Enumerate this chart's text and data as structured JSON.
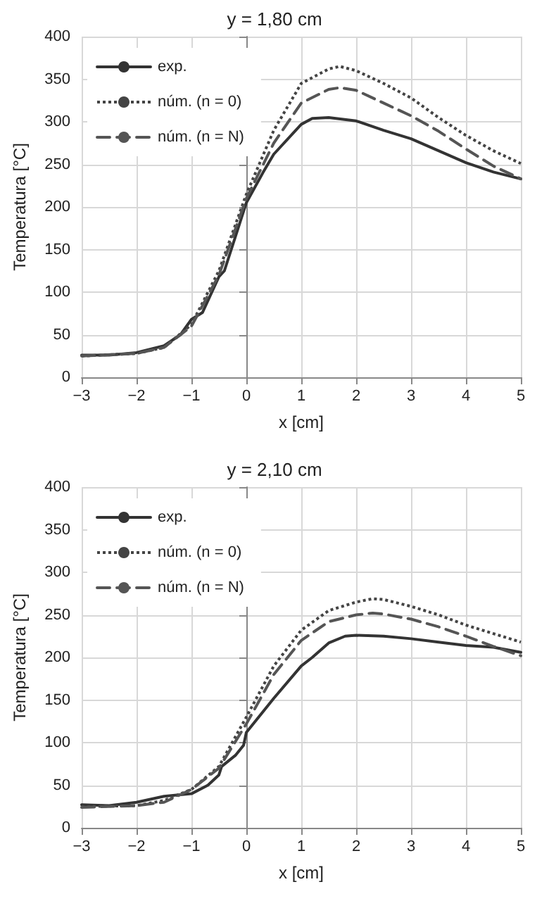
{
  "chart_data": [
    {
      "type": "line",
      "title": "y = 1,80 cm",
      "xlabel": "x [cm]",
      "ylabel": "Temperatura [°C]",
      "xlim": [
        -3,
        5
      ],
      "xticks": [
        {
          "value": -3,
          "label": "−3"
        },
        {
          "value": -2,
          "label": "−2"
        },
        {
          "value": -1,
          "label": "−1"
        },
        0,
        1,
        2,
        3,
        4,
        5
      ],
      "ylim": [
        0,
        400
      ],
      "yticks": [
        0,
        50,
        100,
        150,
        200,
        250,
        300,
        350,
        400
      ],
      "grid": true,
      "legend": "top left",
      "marker": "none",
      "series": [
        {
          "name": "exp.",
          "color": "#333333",
          "line_style": "solid",
          "x": [
            -3,
            -2.5,
            -2,
            -1.5,
            -1.2,
            -1,
            -0.8,
            -0.5,
            -0.4,
            -0.2,
            0,
            0.3,
            0.5,
            1,
            1.2,
            1.5,
            2,
            2.5,
            3,
            3.5,
            4,
            4.5,
            5
          ],
          "values": [
            26,
            26,
            29,
            37,
            50,
            68,
            76,
            118,
            125,
            165,
            205,
            240,
            262,
            297,
            304,
            305,
            301,
            290,
            280,
            266,
            252,
            241,
            233
          ]
        },
        {
          "name": "núm. (n = 0)",
          "color": "#444444",
          "line_style": "dotted",
          "x": [
            -3,
            -2,
            -1.5,
            -1,
            -0.5,
            0,
            0.5,
            1,
            1.5,
            1.7,
            2,
            2.5,
            3,
            3.5,
            4,
            4.5,
            5
          ],
          "values": [
            25,
            28,
            35,
            62,
            125,
            215,
            290,
            345,
            362,
            365,
            360,
            345,
            328,
            305,
            284,
            266,
            251
          ]
        },
        {
          "name": "núm. (n = N)",
          "color": "#555555",
          "line_style": "dashed",
          "x": [
            -3,
            -2,
            -1.5,
            -1,
            -0.5,
            0,
            0.5,
            1,
            1.5,
            1.7,
            2,
            2.5,
            3,
            3.5,
            4,
            4.5,
            5
          ],
          "values": [
            25,
            28,
            35,
            60,
            120,
            210,
            275,
            322,
            338,
            340,
            337,
            322,
            307,
            289,
            268,
            248,
            233
          ]
        }
      ]
    },
    {
      "type": "line",
      "title": "y = 2,10 cm",
      "xlabel": "x [cm]",
      "ylabel": "Temperatura [°C]",
      "xlim": [
        -3,
        5
      ],
      "xticks": [
        {
          "value": -3,
          "label": "−3"
        },
        {
          "value": -2,
          "label": "−2"
        },
        {
          "value": -1,
          "label": "−1"
        },
        0,
        1,
        2,
        3,
        4,
        5
      ],
      "ylim": [
        0,
        400
      ],
      "yticks": [
        0,
        50,
        100,
        150,
        200,
        250,
        300,
        350,
        400
      ],
      "grid": true,
      "legend": "top left",
      "marker": "none",
      "series": [
        {
          "name": "exp.",
          "color": "#333333",
          "line_style": "solid",
          "x": [
            -3,
            -2.5,
            -2,
            -1.5,
            -1,
            -0.7,
            -0.5,
            -0.45,
            -0.2,
            -0.05,
            0,
            0.5,
            1,
            1.2,
            1.5,
            1.8,
            2,
            2.5,
            3,
            3.5,
            4,
            4.5,
            5
          ],
          "values": [
            27,
            26,
            30,
            37,
            40,
            50,
            62,
            72,
            85,
            97,
            112,
            152,
            190,
            200,
            217,
            225,
            226,
            225,
            222,
            218,
            214,
            212,
            206
          ]
        },
        {
          "name": "núm. (n = 0)",
          "color": "#444444",
          "line_style": "dotted",
          "x": [
            -3,
            -2,
            -1.5,
            -1,
            -0.5,
            0,
            0.5,
            1,
            1.5,
            2,
            2.3,
            2.5,
            3,
            3.5,
            4,
            4.5,
            5
          ],
          "values": [
            25,
            26,
            32,
            45,
            72,
            130,
            190,
            232,
            255,
            265,
            269,
            268,
            260,
            250,
            238,
            228,
            218
          ]
        },
        {
          "name": "núm. (n = N)",
          "color": "#555555",
          "line_style": "dashed",
          "x": [
            -3,
            -2,
            -1.5,
            -1,
            -0.5,
            0,
            0.5,
            1,
            1.5,
            2,
            2.3,
            2.5,
            3,
            3.5,
            4,
            4.5,
            5
          ],
          "values": [
            24,
            26,
            30,
            45,
            70,
            122,
            180,
            220,
            242,
            250,
            252,
            251,
            245,
            236,
            225,
            213,
            202
          ]
        }
      ]
    }
  ]
}
